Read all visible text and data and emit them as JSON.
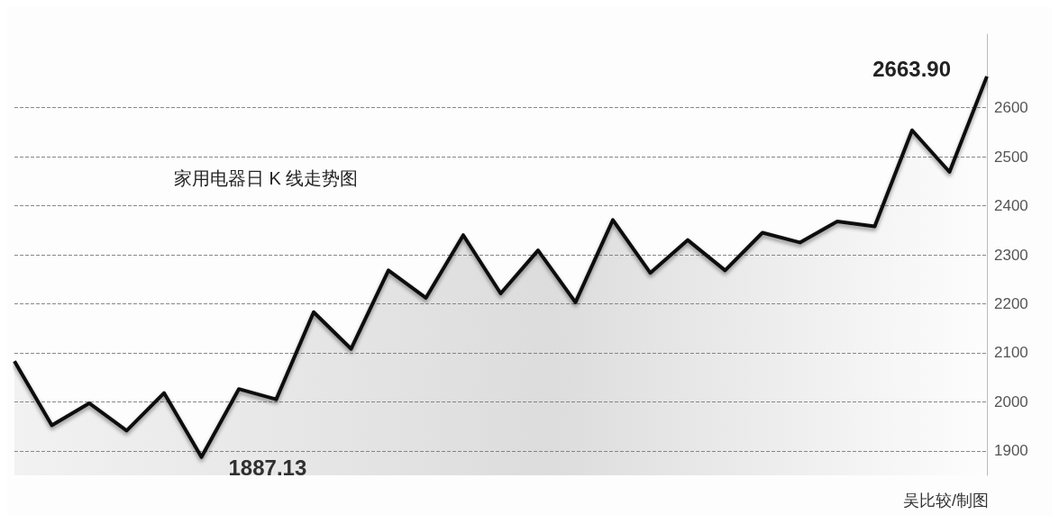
{
  "chart_data": {
    "type": "area",
    "title": "家用电器日 K 线走势图",
    "categories": [
      null,
      null,
      null,
      null,
      null,
      null,
      null,
      null,
      null,
      null,
      null,
      null,
      null,
      null,
      null,
      null,
      null,
      null,
      null,
      null,
      null,
      null,
      null,
      null,
      null,
      null,
      null
    ],
    "values": [
      2083,
      1952,
      1997,
      1941,
      2018,
      1887.13,
      2026,
      2005,
      2183,
      2108,
      2268,
      2212,
      2340,
      2221,
      2309,
      2203,
      2371,
      2263,
      2330,
      2268,
      2345,
      2325,
      2368,
      2358,
      2554,
      2469,
      2663.9
    ],
    "color": "#111111",
    "ylim": [
      1850,
      2750
    ],
    "yticks": [
      1900,
      2000,
      2100,
      2200,
      2300,
      2400,
      2500,
      2600
    ],
    "grid": "y",
    "line_style": "solid",
    "marker": "none",
    "tick_labels": "y",
    "annotations": [
      "1887.13",
      "2663.90",
      "吴比较/制图"
    ]
  }
}
